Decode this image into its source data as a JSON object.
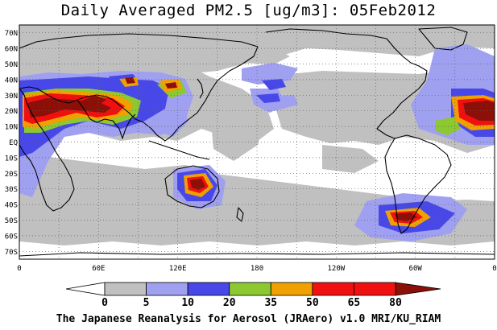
{
  "title": "Daily Averaged PM2.5 [ug/m3]: 05Feb2012",
  "credit": "The Japanese Reanalysis for Aerosol (JRAero) v1.0 MRI/KU_RIAM",
  "map": {
    "projection": "equirectangular",
    "lon_range": [
      0,
      360
    ],
    "lat_range": [
      -75,
      75
    ],
    "lat_ticks": [
      "70N",
      "60N",
      "50N",
      "40N",
      "30N",
      "20N",
      "10N",
      "EQ",
      "10S",
      "20S",
      "30S",
      "40S",
      "50S",
      "60S",
      "70S"
    ],
    "lon_ticks": [
      "0",
      "60E",
      "120E",
      "180",
      "120W",
      "60W",
      "0"
    ],
    "gridlines": "dotted",
    "coastline_color": "#000000"
  },
  "colorbar": {
    "levels": [
      "0",
      "5",
      "10",
      "20",
      "35",
      "50",
      "65",
      "80"
    ],
    "colors": [
      "#ffffff",
      "#c0c0c0",
      "#a0a0f0",
      "#4848e8",
      "#8cc830",
      "#f0a000",
      "#f01010",
      "#8c1008"
    ],
    "extend": "both"
  }
}
